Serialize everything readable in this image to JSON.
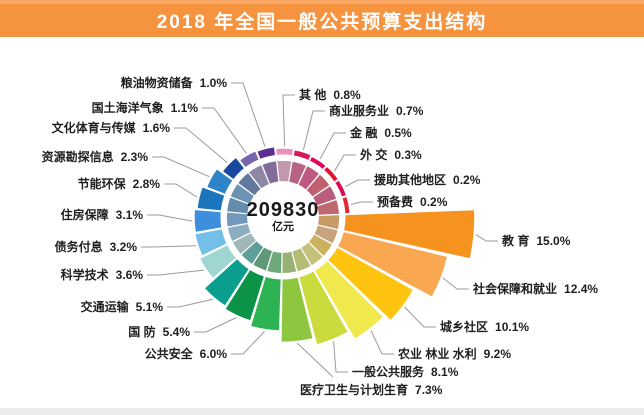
{
  "title": "2018 年全国一般公共预算支出结构",
  "center": {
    "value": "209830",
    "unit": "亿元"
  },
  "colors": {
    "titlebar": "#F6933E",
    "titlebar_top": "#F8A767",
    "leader_line": "#9B9B9B",
    "label_text": "#1F1F1F",
    "footer_strip": "#ECECEC",
    "center_text": "#1A1A1A"
  },
  "chart_data": {
    "type": "pie",
    "variant": "nightingale-rose",
    "title": "2018 年全国一般公共预算支出结构",
    "center_total": {
      "value": 209830,
      "unit": "亿元"
    },
    "legend_position": "callout-labels",
    "grid": false,
    "items": [
      {
        "label": "教 育",
        "value": 15.0,
        "pct_label": "15.0%",
        "color": "#F6921E"
      },
      {
        "label": "社会保障和就业",
        "value": 12.4,
        "pct_label": "12.4%",
        "color": "#F9A851"
      },
      {
        "label": "城乡社区",
        "value": 10.1,
        "pct_label": "10.1%",
        "color": "#FEC40F"
      },
      {
        "label": "农业 林业 水利",
        "value": 9.2,
        "pct_label": "9.2%",
        "color": "#F0E94E"
      },
      {
        "label": "一般公共服务",
        "value": 8.1,
        "pct_label": "8.1%",
        "color": "#CBDB3E"
      },
      {
        "label": "医疗卫生与计划生育",
        "value": 7.3,
        "pct_label": "7.3%",
        "color": "#8EC640"
      },
      {
        "label": "公共安全",
        "value": 6.0,
        "pct_label": "6.0%",
        "color": "#2EB353"
      },
      {
        "label": "国 防",
        "value": 5.4,
        "pct_label": "5.4%",
        "color": "#0D9347"
      },
      {
        "label": "交通运输",
        "value": 5.1,
        "pct_label": "5.1%",
        "color": "#0A9E8E"
      },
      {
        "label": "科学技术",
        "value": 3.6,
        "pct_label": "3.6%",
        "color": "#9FD6D2"
      },
      {
        "label": "债务付息",
        "value": 3.2,
        "pct_label": "3.2%",
        "color": "#74BFE8"
      },
      {
        "label": "住房保障",
        "value": 3.1,
        "pct_label": "3.1%",
        "color": "#3E8EDE"
      },
      {
        "label": "节能环保",
        "value": 2.8,
        "pct_label": "2.8%",
        "color": "#1B75BC"
      },
      {
        "label": "资源勘探信息",
        "value": 2.3,
        "pct_label": "2.3%",
        "color": "#2D85C8"
      },
      {
        "label": "文化体育与传媒",
        "value": 1.6,
        "pct_label": "1.6%",
        "color": "#17479E"
      },
      {
        "label": "国土海洋气象",
        "value": 1.1,
        "pct_label": "1.1%",
        "color": "#7566AE"
      },
      {
        "label": "粮油物资储备",
        "value": 1.0,
        "pct_label": "1.0%",
        "color": "#5E2D91"
      },
      {
        "label": "其 他",
        "value": 0.8,
        "pct_label": "0.8%",
        "color": "#EC8FBC"
      },
      {
        "label": "商业服务业",
        "value": 0.7,
        "pct_label": "0.7%",
        "color": "#D6185B"
      },
      {
        "label": "金 融",
        "value": 0.5,
        "pct_label": "0.5%",
        "color": "#E5005B"
      },
      {
        "label": "外 交",
        "value": 0.3,
        "pct_label": "0.3%",
        "color": "#E8112D"
      },
      {
        "label": "援助其他地区",
        "value": 0.2,
        "pct_label": "0.2%",
        "color": "#D80C50"
      },
      {
        "label": "预备费",
        "value": 0.2,
        "pct_label": "0.2%",
        "color": "#E32636"
      }
    ]
  }
}
